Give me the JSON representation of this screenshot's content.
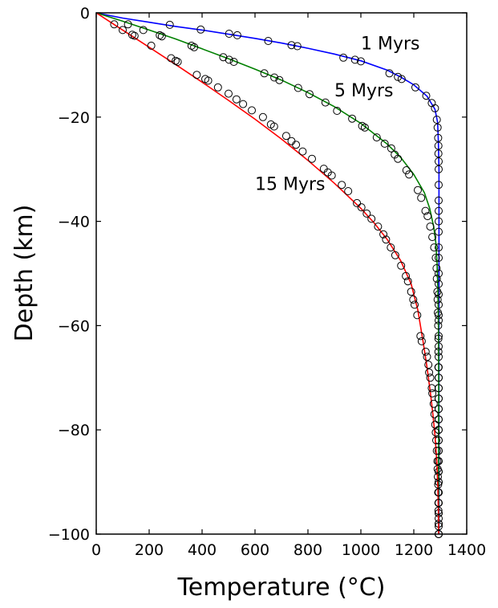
{
  "chart_data": {
    "type": "line",
    "xlabel": "Temperature (°C)",
    "ylabel": "Depth (km)",
    "xlim": [
      0,
      1400
    ],
    "ylim": [
      -100,
      0
    ],
    "xticks": [
      {
        "value": 0,
        "label": "0"
      },
      {
        "value": 200,
        "label": "200"
      },
      {
        "value": 400,
        "label": "400"
      },
      {
        "value": 600,
        "label": "600"
      },
      {
        "value": 800,
        "label": "800"
      },
      {
        "value": 1000,
        "label": "1000"
      },
      {
        "value": 1200,
        "label": "1200"
      },
      {
        "value": 1400,
        "label": "1400"
      }
    ],
    "yticks": [
      {
        "value": 0,
        "label": "0"
      },
      {
        "value": -20,
        "label": "−20"
      },
      {
        "value": -40,
        "label": "−40"
      },
      {
        "value": -60,
        "label": "−60"
      },
      {
        "value": -80,
        "label": "−80"
      },
      {
        "value": -100,
        "label": "−100"
      }
    ],
    "grid": false,
    "series": [
      {
        "name": "1 Myrs",
        "color": "#0000ff",
        "label_position": {
          "x": 1000,
          "y": -7
        },
        "line": [
          [
            0,
            0
          ],
          [
            100,
            -1
          ],
          [
            200,
            -1.8
          ],
          [
            300,
            -2.6
          ],
          [
            400,
            -3.3
          ],
          [
            500,
            -4.1
          ],
          [
            600,
            -4.9
          ],
          [
            700,
            -5.8
          ],
          [
            800,
            -6.8
          ],
          [
            900,
            -7.9
          ],
          [
            1000,
            -9.2
          ],
          [
            1100,
            -11
          ],
          [
            1150,
            -12.3
          ],
          [
            1200,
            -13.8
          ],
          [
            1250,
            -16
          ],
          [
            1280,
            -18.5
          ],
          [
            1290,
            -21
          ],
          [
            1293,
            -25
          ],
          [
            1295,
            -30
          ],
          [
            1295,
            -100
          ]
        ],
        "markers": [
          [
            278,
            -2.3
          ],
          [
            395,
            -3.2
          ],
          [
            502,
            -4.0
          ],
          [
            533,
            -4.3
          ],
          [
            650,
            -5.4
          ],
          [
            738,
            -6.2
          ],
          [
            760,
            -6.4
          ],
          [
            934,
            -8.6
          ],
          [
            978,
            -9.0
          ],
          [
            1000,
            -9.3
          ],
          [
            1108,
            -11.6
          ],
          [
            1140,
            -12.3
          ],
          [
            1154,
            -12.7
          ],
          [
            1206,
            -14.3
          ],
          [
            1247,
            -15.9
          ],
          [
            1268,
            -17.3
          ],
          [
            1280,
            -18.3
          ],
          [
            1287,
            -20.5
          ],
          [
            1290,
            -22
          ],
          [
            1292,
            -24
          ],
          [
            1293,
            -25.5
          ],
          [
            1293,
            -27
          ],
          [
            1294,
            -28.5
          ],
          [
            1294,
            -30
          ],
          [
            1294,
            -33
          ],
          [
            1294,
            -36
          ],
          [
            1294,
            -38
          ],
          [
            1294,
            -40
          ],
          [
            1294,
            -42
          ],
          [
            1294,
            -45
          ],
          [
            1294,
            -47
          ],
          [
            1294,
            -50
          ],
          [
            1294,
            -52
          ],
          [
            1294,
            -54
          ],
          [
            1294,
            -56
          ],
          [
            1294,
            -58
          ],
          [
            1294,
            -59
          ],
          [
            1294,
            -62
          ],
          [
            1294,
            -64
          ],
          [
            1294,
            -66
          ],
          [
            1294,
            -68
          ],
          [
            1294,
            -70
          ],
          [
            1294,
            -72
          ],
          [
            1294,
            -74
          ],
          [
            1294,
            -76
          ],
          [
            1294,
            -78
          ],
          [
            1294,
            -80
          ],
          [
            1294,
            -82
          ],
          [
            1294,
            -84
          ],
          [
            1294,
            -86
          ],
          [
            1294,
            -88
          ],
          [
            1294,
            -90
          ],
          [
            1294,
            -92
          ],
          [
            1294,
            -94
          ],
          [
            1294,
            -96
          ],
          [
            1294,
            -98
          ],
          [
            1294,
            -100
          ]
        ]
      },
      {
        "name": "5 Myrs",
        "color": "#008000",
        "label_position": {
          "x": 900,
          "y": -16
        },
        "line": [
          [
            0,
            0
          ],
          [
            100,
            -1.6
          ],
          [
            200,
            -3.3
          ],
          [
            300,
            -5.0
          ],
          [
            400,
            -6.9
          ],
          [
            500,
            -8.8
          ],
          [
            600,
            -10.8
          ],
          [
            700,
            -12.9
          ],
          [
            800,
            -15.3
          ],
          [
            900,
            -18.0
          ],
          [
            1000,
            -21.2
          ],
          [
            1100,
            -25.2
          ],
          [
            1150,
            -27.7
          ],
          [
            1200,
            -31
          ],
          [
            1240,
            -34.5
          ],
          [
            1260,
            -37.5
          ],
          [
            1275,
            -41
          ],
          [
            1283,
            -44
          ],
          [
            1288,
            -48
          ],
          [
            1291,
            -53
          ],
          [
            1293,
            -60
          ],
          [
            1294,
            -70
          ],
          [
            1294,
            -100
          ]
        ],
        "markers": [
          [
            120,
            -2.2
          ],
          [
            178,
            -3.3
          ],
          [
            240,
            -4.3
          ],
          [
            248,
            -4.5
          ],
          [
            360,
            -6.3
          ],
          [
            370,
            -6.6
          ],
          [
            480,
            -8.5
          ],
          [
            502,
            -9.0
          ],
          [
            520,
            -9.4
          ],
          [
            635,
            -11.6
          ],
          [
            673,
            -12.4
          ],
          [
            692,
            -12.9
          ],
          [
            763,
            -14.4
          ],
          [
            806,
            -15.6
          ],
          [
            866,
            -17.2
          ],
          [
            910,
            -18.8
          ],
          [
            967,
            -20.3
          ],
          [
            1005,
            -21.7
          ],
          [
            1015,
            -22.0
          ],
          [
            1060,
            -23.9
          ],
          [
            1090,
            -25.1
          ],
          [
            1115,
            -26.0
          ],
          [
            1128,
            -27.2
          ],
          [
            1140,
            -28.0
          ],
          [
            1172,
            -30.2
          ],
          [
            1182,
            -31.0
          ],
          [
            1215,
            -34.0
          ],
          [
            1228,
            -35.5
          ],
          [
            1244,
            -38.0
          ],
          [
            1252,
            -39.0
          ],
          [
            1262,
            -41.0
          ],
          [
            1270,
            -43.0
          ],
          [
            1277,
            -45.0
          ],
          [
            1283,
            -47.0
          ],
          [
            1286,
            -49.0
          ],
          [
            1287,
            -51.0
          ],
          [
            1289,
            -53.5
          ],
          [
            1290,
            -55
          ],
          [
            1291,
            -57.5
          ],
          [
            1292,
            -60
          ],
          [
            1293,
            -62.5
          ],
          [
            1293,
            -65
          ],
          [
            1293,
            -68
          ],
          [
            1294,
            -70
          ],
          [
            1294,
            -72
          ],
          [
            1294,
            -74
          ],
          [
            1294,
            -76
          ],
          [
            1294,
            -78
          ],
          [
            1294,
            -80
          ],
          [
            1294,
            -82
          ],
          [
            1294,
            -84
          ],
          [
            1294,
            -86
          ],
          [
            1294,
            -88
          ],
          [
            1294,
            -90
          ],
          [
            1294,
            -92
          ],
          [
            1294,
            -94
          ],
          [
            1294,
            -96
          ],
          [
            1294,
            -98
          ],
          [
            1294,
            -100
          ]
        ]
      },
      {
        "name": "15 Myrs",
        "color": "#ff0000",
        "label_position": {
          "x": 600,
          "y": -34
        },
        "line": [
          [
            0,
            0
          ],
          [
            100,
            -3.3
          ],
          [
            200,
            -6.6
          ],
          [
            300,
            -9.9
          ],
          [
            400,
            -13.3
          ],
          [
            500,
            -16.8
          ],
          [
            600,
            -20.4
          ],
          [
            700,
            -24.2
          ],
          [
            800,
            -28.3
          ],
          [
            900,
            -32.7
          ],
          [
            1000,
            -37.5
          ],
          [
            1050,
            -40.3
          ],
          [
            1100,
            -43.5
          ],
          [
            1150,
            -47.5
          ],
          [
            1190,
            -52
          ],
          [
            1215,
            -57
          ],
          [
            1235,
            -63
          ],
          [
            1250,
            -68
          ],
          [
            1263,
            -73
          ],
          [
            1272,
            -77
          ],
          [
            1280,
            -81
          ],
          [
            1287,
            -86
          ],
          [
            1291,
            -91
          ],
          [
            1293,
            -96
          ],
          [
            1294,
            -100
          ]
        ],
        "markers": [
          [
            68,
            -2.2
          ],
          [
            100,
            -3.3
          ],
          [
            136,
            -4.2
          ],
          [
            145,
            -4.4
          ],
          [
            208,
            -6.3
          ],
          [
            283,
            -8.7
          ],
          [
            300,
            -9.2
          ],
          [
            308,
            -9.4
          ],
          [
            380,
            -11.9
          ],
          [
            412,
            -12.7
          ],
          [
            423,
            -13.0
          ],
          [
            460,
            -14.3
          ],
          [
            500,
            -15.5
          ],
          [
            530,
            -16.6
          ],
          [
            555,
            -17.5
          ],
          [
            588,
            -18.7
          ],
          [
            630,
            -20.0
          ],
          [
            660,
            -21.4
          ],
          [
            672,
            -21.8
          ],
          [
            718,
            -23.6
          ],
          [
            738,
            -24.6
          ],
          [
            755,
            -25.3
          ],
          [
            780,
            -26.6
          ],
          [
            815,
            -28.0
          ],
          [
            860,
            -29.9
          ],
          [
            875,
            -30.6
          ],
          [
            890,
            -31.2
          ],
          [
            928,
            -33.0
          ],
          [
            952,
            -34.2
          ],
          [
            985,
            -36.5
          ],
          [
            1002,
            -37.3
          ],
          [
            1022,
            -38.5
          ],
          [
            1040,
            -39.5
          ],
          [
            1065,
            -41.0
          ],
          [
            1085,
            -42.5
          ],
          [
            1095,
            -43.5
          ],
          [
            1113,
            -45.0
          ],
          [
            1130,
            -46.5
          ],
          [
            1152,
            -48.5
          ],
          [
            1170,
            -50.5
          ],
          [
            1178,
            -51.5
          ],
          [
            1190,
            -53.5
          ],
          [
            1198,
            -55
          ],
          [
            1203,
            -56
          ],
          [
            1213,
            -58
          ],
          [
            1225,
            -62
          ],
          [
            1230,
            -63
          ],
          [
            1245,
            -65
          ],
          [
            1250,
            -66
          ],
          [
            1255,
            -67.5
          ],
          [
            1258,
            -69
          ],
          [
            1262,
            -70
          ],
          [
            1268,
            -72
          ],
          [
            1270,
            -73
          ],
          [
            1275,
            -75
          ],
          [
            1278,
            -77
          ],
          [
            1281,
            -79
          ],
          [
            1283,
            -80.5
          ],
          [
            1285,
            -82
          ],
          [
            1287,
            -84
          ],
          [
            1289,
            -86
          ],
          [
            1290,
            -87.5
          ],
          [
            1291,
            -89
          ],
          [
            1292,
            -90.5
          ],
          [
            1292,
            -92
          ],
          [
            1293,
            -94
          ],
          [
            1293,
            -95.5
          ],
          [
            1294,
            -97
          ],
          [
            1294,
            -98.5
          ],
          [
            1294,
            -100
          ]
        ]
      }
    ]
  }
}
